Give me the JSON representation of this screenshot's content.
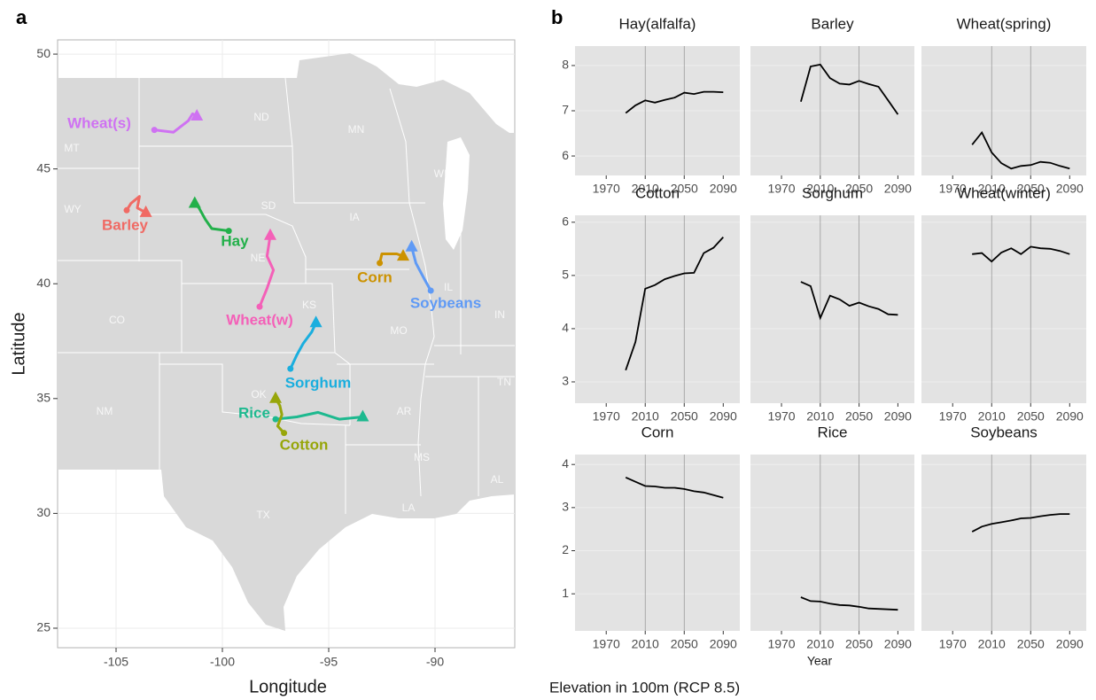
{
  "chart_data": [
    {
      "type": "map",
      "panel_label": "a",
      "xlabel": "Longitude",
      "ylabel": "Latitude",
      "xlim": [
        -107.75,
        -86.25
      ],
      "ylim": [
        24.15,
        50.62
      ],
      "xticks": [
        -105,
        -100,
        -95,
        -90
      ],
      "yticks": [
        25,
        30,
        35,
        40,
        45,
        50
      ],
      "grid": true,
      "series": [
        {
          "name": "Wheat(s)",
          "color": "#cf72f2",
          "x": [
            -103.2,
            -102.3,
            -101.6,
            -101.4,
            -101.2
          ],
          "y": [
            46.7,
            46.6,
            47.1,
            47.4,
            47.3
          ]
        },
        {
          "name": "Barley",
          "color": "#f06a64",
          "x": [
            -104.5,
            -104.3,
            -103.9,
            -104.0,
            -103.6
          ],
          "y": [
            43.2,
            43.5,
            43.8,
            43.3,
            43.1
          ]
        },
        {
          "name": "Hay",
          "color": "#22b04a",
          "x": [
            -99.7,
            -100.5,
            -100.8,
            -101.1,
            -101.3
          ],
          "y": [
            42.3,
            42.4,
            42.8,
            43.3,
            43.5
          ]
        },
        {
          "name": "Wheat(w)",
          "color": "#f460b8",
          "x": [
            -98.25,
            -97.9,
            -97.6,
            -97.9,
            -97.75
          ],
          "y": [
            39.0,
            39.8,
            40.6,
            41.2,
            42.1
          ]
        },
        {
          "name": "Corn",
          "color": "#cc9200",
          "x": [
            -92.6,
            -92.5,
            -91.8,
            -91.5
          ],
          "y": [
            40.9,
            41.3,
            41.3,
            41.2
          ]
        },
        {
          "name": "Soybeans",
          "color": "#5f9af5",
          "x": [
            -90.2,
            -90.5,
            -90.9,
            -91.1
          ],
          "y": [
            39.7,
            40.2,
            40.9,
            41.6
          ]
        },
        {
          "name": "Sorghum",
          "color": "#1aaede",
          "x": [
            -96.8,
            -96.5,
            -96.2,
            -95.8,
            -95.6
          ],
          "y": [
            36.3,
            36.9,
            37.4,
            37.9,
            38.3
          ]
        },
        {
          "name": "Rice",
          "color": "#1db98f",
          "x": [
            -97.5,
            -96.5,
            -95.5,
            -94.5,
            -93.4
          ],
          "y": [
            34.1,
            34.2,
            34.4,
            34.1,
            34.2
          ]
        },
        {
          "name": "Cotton",
          "color": "#97a60a",
          "x": [
            -97.1,
            -97.4,
            -97.2,
            -97.3,
            -97.5
          ],
          "y": [
            33.5,
            33.8,
            34.3,
            34.7,
            35.0
          ]
        }
      ],
      "state_labels": [
        "ND",
        "MN",
        "MT",
        "WI",
        "SD",
        "WY",
        "IA",
        "NE",
        "IL",
        "CO",
        "KS",
        "MO",
        "IN",
        "OK",
        "TN",
        "NM",
        "AR",
        "MS",
        "AL",
        "TX",
        "LA"
      ]
    },
    {
      "type": "facet_line",
      "panel_label": "b",
      "xlabel": "Year",
      "caption": "Elevation in 100m (RCP 8.5)",
      "x": [
        1990,
        2000,
        2010,
        2020,
        2030,
        2040,
        2050,
        2060,
        2070,
        2080,
        2090
      ],
      "xlim": [
        1938,
        2107
      ],
      "xticks": [
        1970,
        2010,
        2050,
        2090
      ],
      "vlines": [
        2010,
        2050
      ],
      "color": "#000000",
      "rows": [
        {
          "ylim": [
            5.57,
            8.43
          ],
          "yticks": [
            6,
            7,
            8
          ],
          "panels": [
            {
              "title": "Hay(alfalfa)",
              "values": [
                6.95,
                7.12,
                7.23,
                7.18,
                7.24,
                7.29,
                7.4,
                7.37,
                7.42,
                7.42,
                7.41
              ]
            },
            {
              "title": "Barley",
              "values": [
                7.2,
                7.98,
                8.02,
                7.72,
                7.6,
                7.58,
                7.66,
                7.59,
                7.53,
                7.23,
                6.92
              ]
            },
            {
              "title": "Wheat(spring)",
              "values": [
                6.25,
                6.52,
                6.08,
                5.84,
                5.72,
                5.78,
                5.8,
                5.87,
                5.85,
                5.78,
                5.72
              ]
            }
          ]
        },
        {
          "ylim": [
            2.6,
            6.13
          ],
          "yticks": [
            3,
            4,
            5,
            6
          ],
          "panels": [
            {
              "title": "Cotton",
              "values": [
                3.22,
                3.75,
                4.75,
                4.82,
                4.93,
                4.99,
                5.04,
                5.05,
                5.42,
                5.52,
                5.72
              ]
            },
            {
              "title": "Sorghum",
              "values": [
                4.88,
                4.8,
                4.2,
                4.62,
                4.55,
                4.43,
                4.49,
                4.42,
                4.37,
                4.27,
                4.26
              ]
            },
            {
              "title": "Wheat(winter)",
              "values": [
                5.4,
                5.42,
                5.26,
                5.43,
                5.51,
                5.4,
                5.54,
                5.51,
                5.5,
                5.46,
                5.4
              ]
            }
          ]
        },
        {
          "ylim": [
            0.14,
            4.23
          ],
          "yticks": [
            1,
            2,
            3,
            4
          ],
          "panels": [
            {
              "title": "Corn",
              "values": [
                3.7,
                3.6,
                3.5,
                3.49,
                3.46,
                3.46,
                3.43,
                3.38,
                3.35,
                3.29,
                3.23
              ]
            },
            {
              "title": "Rice",
              "values": [
                0.92,
                0.83,
                0.82,
                0.77,
                0.74,
                0.73,
                0.7,
                0.66,
                0.65,
                0.64,
                0.63
              ]
            },
            {
              "title": "Soybeans",
              "values": [
                2.44,
                2.56,
                2.62,
                2.66,
                2.7,
                2.75,
                2.76,
                2.8,
                2.83,
                2.85,
                2.85
              ]
            }
          ]
        }
      ]
    }
  ]
}
